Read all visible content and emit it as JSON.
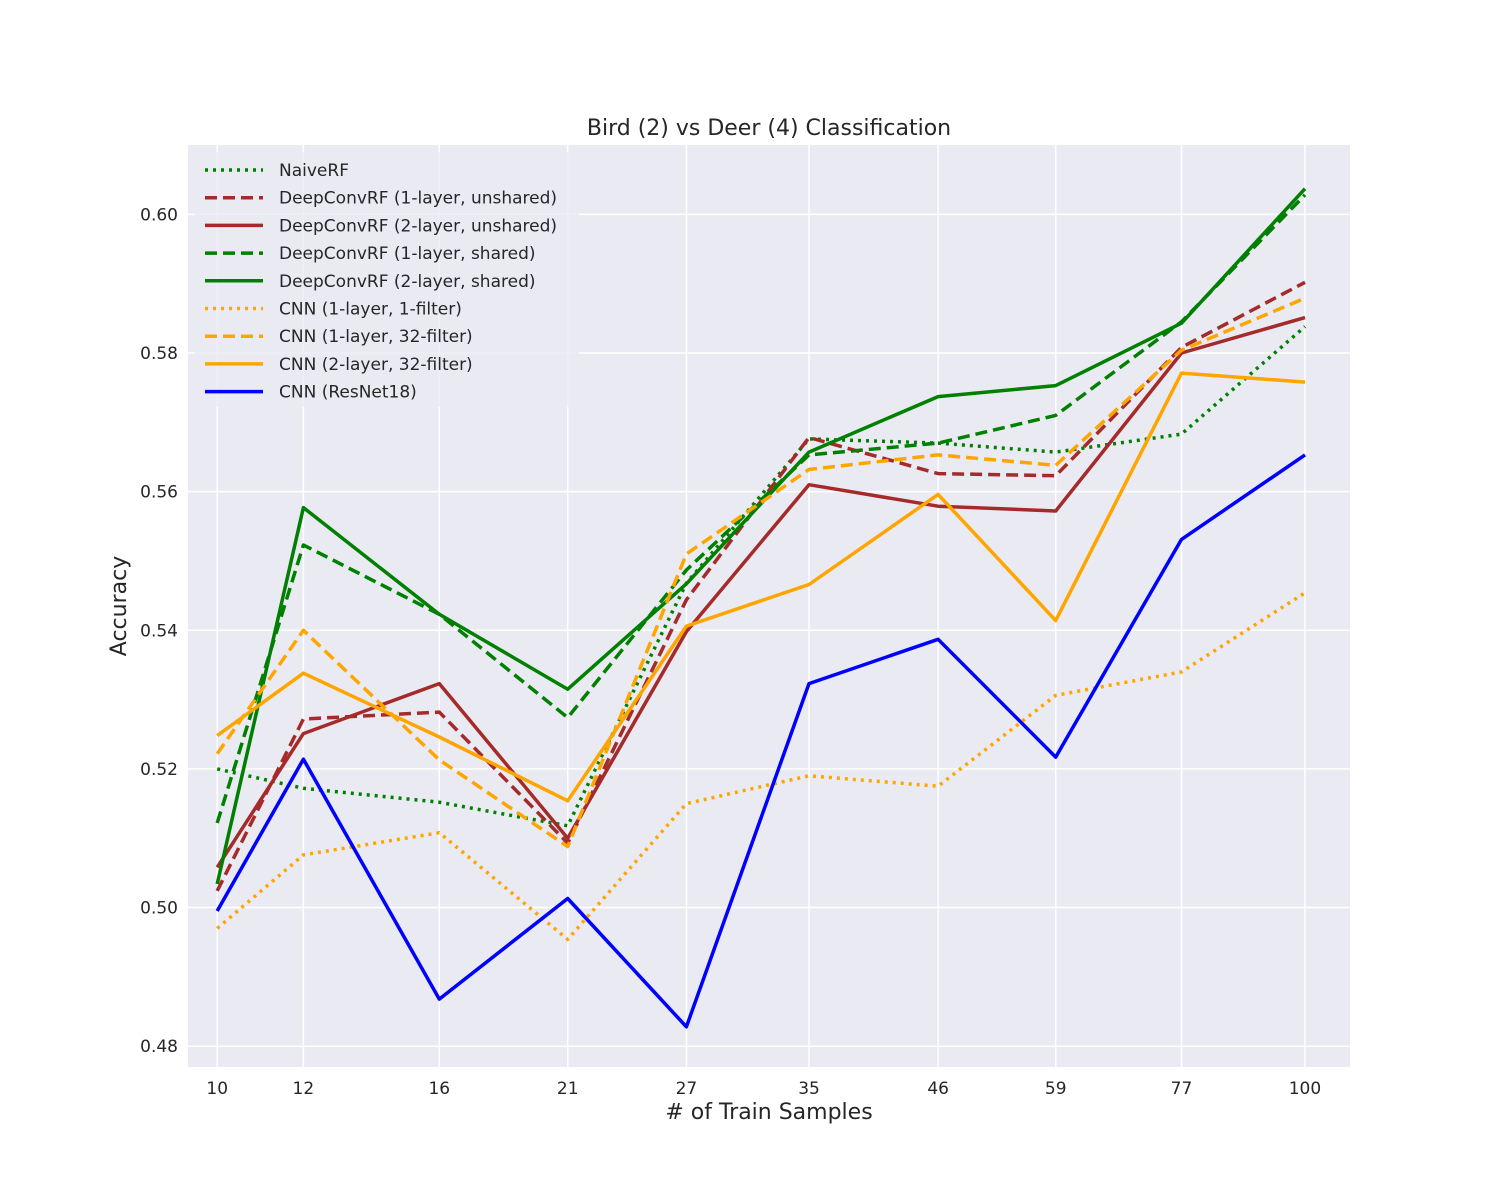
{
  "chart_data": {
    "type": "line",
    "title": "Bird (2) vs Deer (4) Classification",
    "xlabel": "# of Train Samples",
    "ylabel": "Accuracy",
    "x_scale": "log",
    "x": [
      10,
      12,
      16,
      21,
      27,
      35,
      46,
      59,
      77,
      100
    ],
    "xlim": [
      9.4,
      110
    ],
    "ylim": [
      0.477,
      0.61
    ],
    "yticks": [
      0.48,
      0.5,
      0.52,
      0.54,
      0.56,
      0.58,
      0.6
    ],
    "ytick_labels": [
      "0.48",
      "0.50",
      "0.52",
      "0.54",
      "0.56",
      "0.58",
      "0.60"
    ],
    "grid": true,
    "legend_position": "top-left",
    "series": [
      {
        "name": "NaiveRF",
        "color": "#008000",
        "style": "dotted",
        "values": [
          0.52,
          0.5172,
          0.5152,
          0.5118,
          0.5468,
          0.5676,
          0.567,
          0.5657,
          0.5683,
          0.5838
        ]
      },
      {
        "name": "DeepConvRF (1-layer, unshared)",
        "color": "#a52a2a",
        "style": "dashed",
        "values": [
          0.5024,
          0.5272,
          0.5282,
          0.5093,
          0.5444,
          0.5678,
          0.5626,
          0.5623,
          0.5808,
          0.5902
        ]
      },
      {
        "name": "DeepConvRF (2-layer, unshared)",
        "color": "#a52a2a",
        "style": "solid",
        "values": [
          0.5058,
          0.5251,
          0.5323,
          0.51,
          0.5398,
          0.561,
          0.5579,
          0.5572,
          0.58,
          0.5851
        ]
      },
      {
        "name": "DeepConvRF (1-layer, shared)",
        "color": "#008000",
        "style": "dashed",
        "values": [
          0.5122,
          0.5523,
          0.5423,
          0.5274,
          0.5487,
          0.5653,
          0.567,
          0.571,
          0.5845,
          0.6028
        ]
      },
      {
        "name": "DeepConvRF (2-layer, shared)",
        "color": "#008000",
        "style": "solid",
        "values": [
          0.5034,
          0.5577,
          0.5423,
          0.5315,
          0.5467,
          0.5657,
          0.5737,
          0.5753,
          0.5843,
          0.6037
        ]
      },
      {
        "name": "CNN (1-layer, 1-filter)",
        "color": "#ffa500",
        "style": "dotted",
        "values": [
          0.497,
          0.5076,
          0.5108,
          0.4954,
          0.515,
          0.519,
          0.5175,
          0.5306,
          0.534,
          0.5454
        ]
      },
      {
        "name": "CNN (1-layer, 32-filter)",
        "color": "#ffa500",
        "style": "dashed",
        "values": [
          0.5222,
          0.54,
          0.5213,
          0.5088,
          0.551,
          0.5632,
          0.5653,
          0.5638,
          0.5804,
          0.5879
        ]
      },
      {
        "name": "CNN (2-layer, 32-filter)",
        "color": "#ffa500",
        "style": "solid",
        "values": [
          0.5248,
          0.5338,
          0.5246,
          0.5154,
          0.5406,
          0.5466,
          0.5596,
          0.5414,
          0.5771,
          0.5758
        ]
      },
      {
        "name": "CNN (ResNet18)",
        "color": "#0000ff",
        "style": "solid",
        "values": [
          0.4995,
          0.5214,
          0.4868,
          0.5013,
          0.4828,
          0.5323,
          0.5387,
          0.5217,
          0.5531,
          0.5653
        ]
      }
    ]
  }
}
